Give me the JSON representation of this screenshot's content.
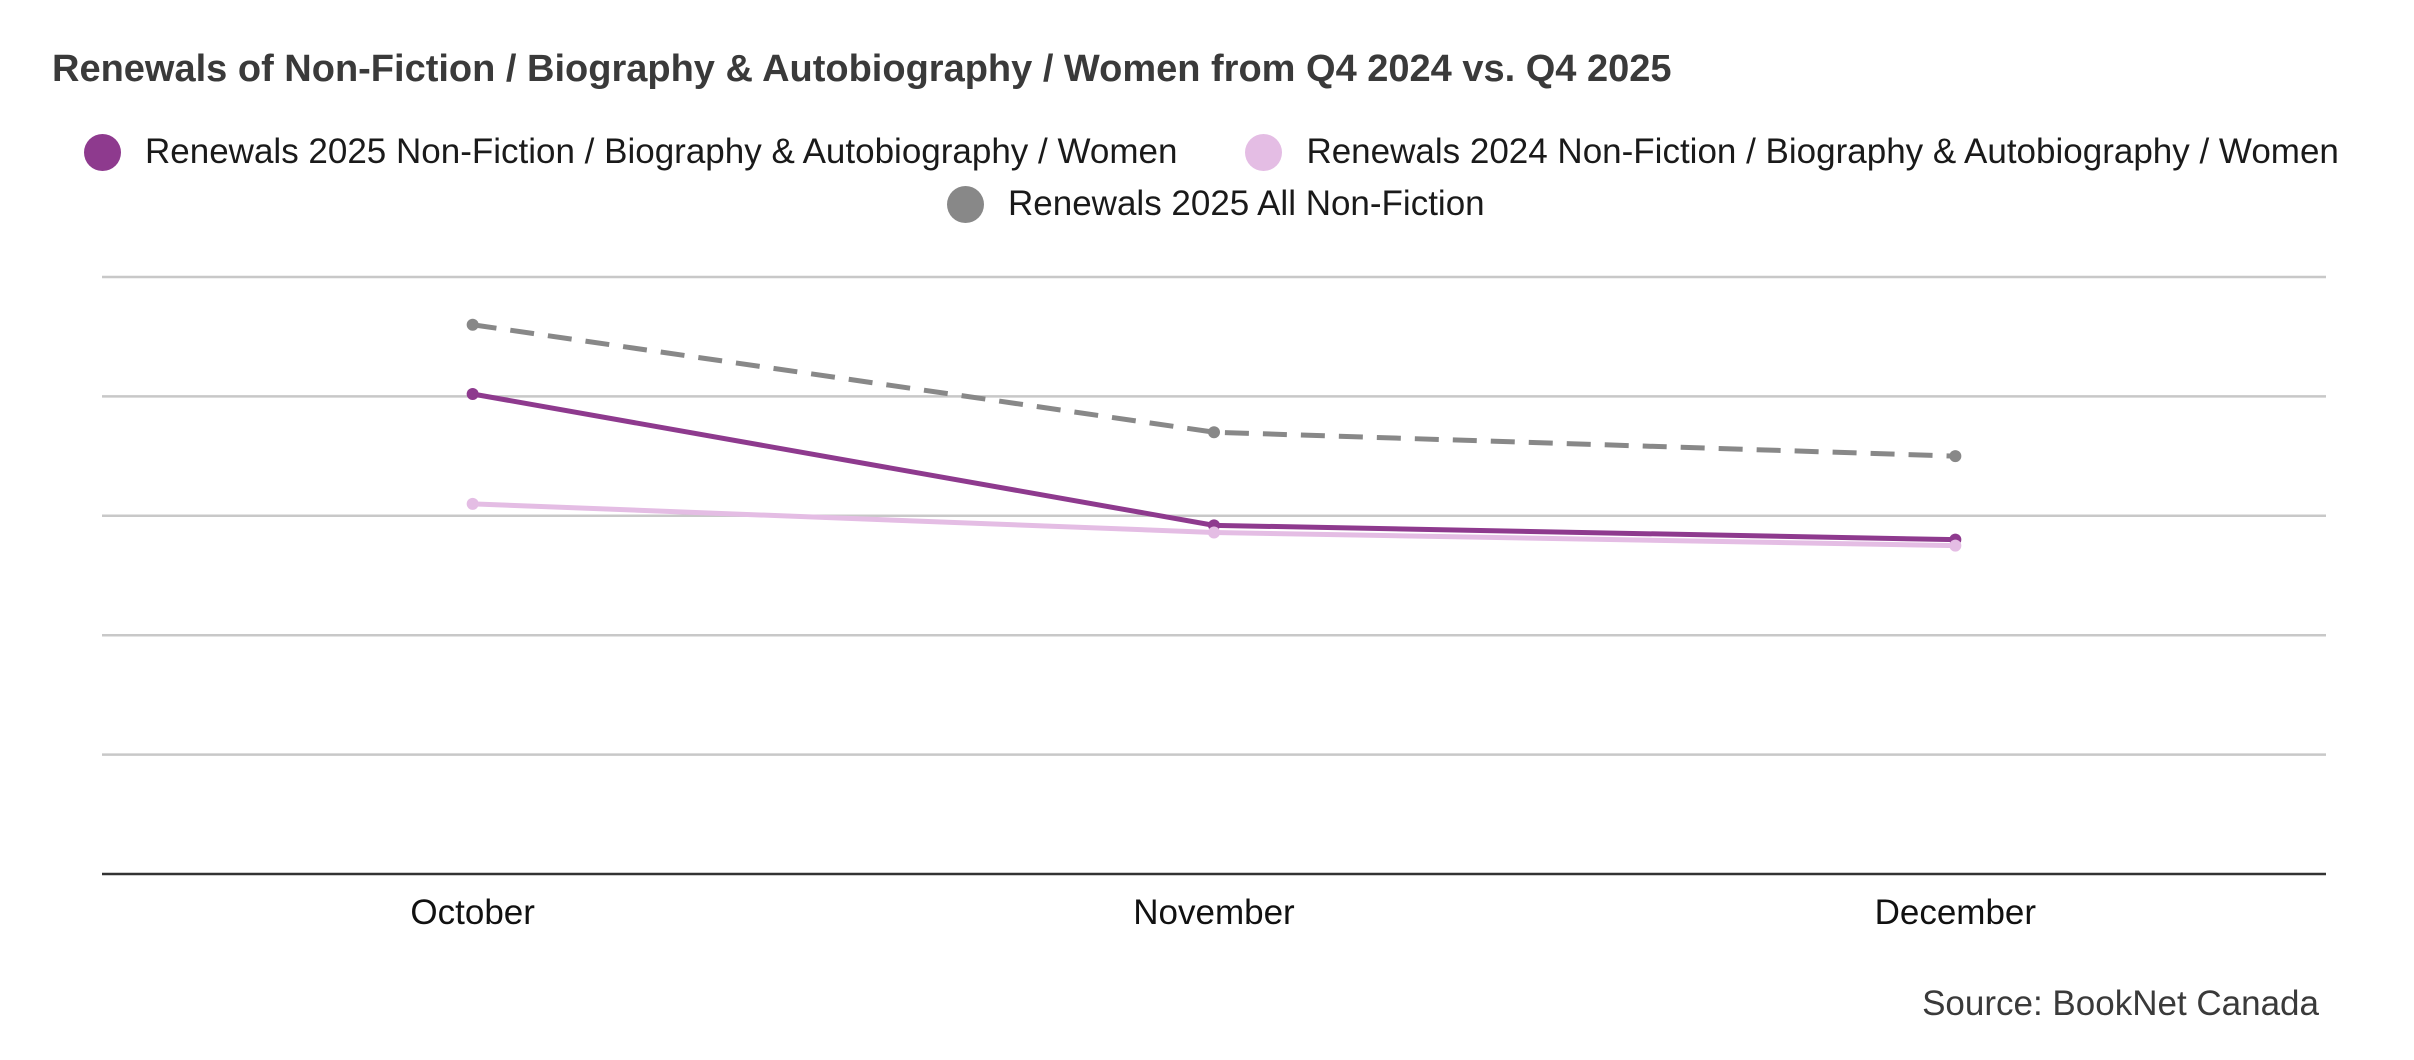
{
  "chart_data": {
    "type": "line",
    "title": "Renewals of Non-Fiction / Biography & Autobiography / Women from Q4 2024 vs. Q4 2025",
    "categories": [
      "October",
      "November",
      "December"
    ],
    "series": [
      {
        "name": "Renewals 2025 All Non-Fiction",
        "color": "#888888",
        "style": "dashed",
        "values": [
          4.6,
          3.7,
          3.5
        ]
      },
      {
        "name": "Renewals 2025 Non-Fiction / Biography & Autobiography / Women",
        "color": "#8e3a8e",
        "style": "solid",
        "values": [
          4.02,
          2.92,
          2.8
        ]
      },
      {
        "name": "Renewals 2024 Non-Fiction / Biography & Autobiography / Women",
        "color": "#e4bde4",
        "style": "solid",
        "values": [
          3.1,
          2.86,
          2.75
        ]
      }
    ],
    "legend": [
      {
        "label": "Renewals 2025 Non-Fiction / Biography & Autobiography / Women",
        "color": "#8e3a8e"
      },
      {
        "label": "Renewals 2024 Non-Fiction / Biography & Autobiography / Women",
        "color": "#e4bde4"
      },
      {
        "label": "Renewals 2025 All Non-Fiction",
        "color": "#888888"
      }
    ],
    "ylim": [
      0,
      5
    ],
    "yticks": [
      0,
      1,
      2,
      3,
      4,
      5
    ],
    "ytick_labels_visible": false,
    "grid": true,
    "xlabel": "",
    "ylabel": "",
    "legend_position": "top"
  },
  "source": "Source: BookNet Canada"
}
